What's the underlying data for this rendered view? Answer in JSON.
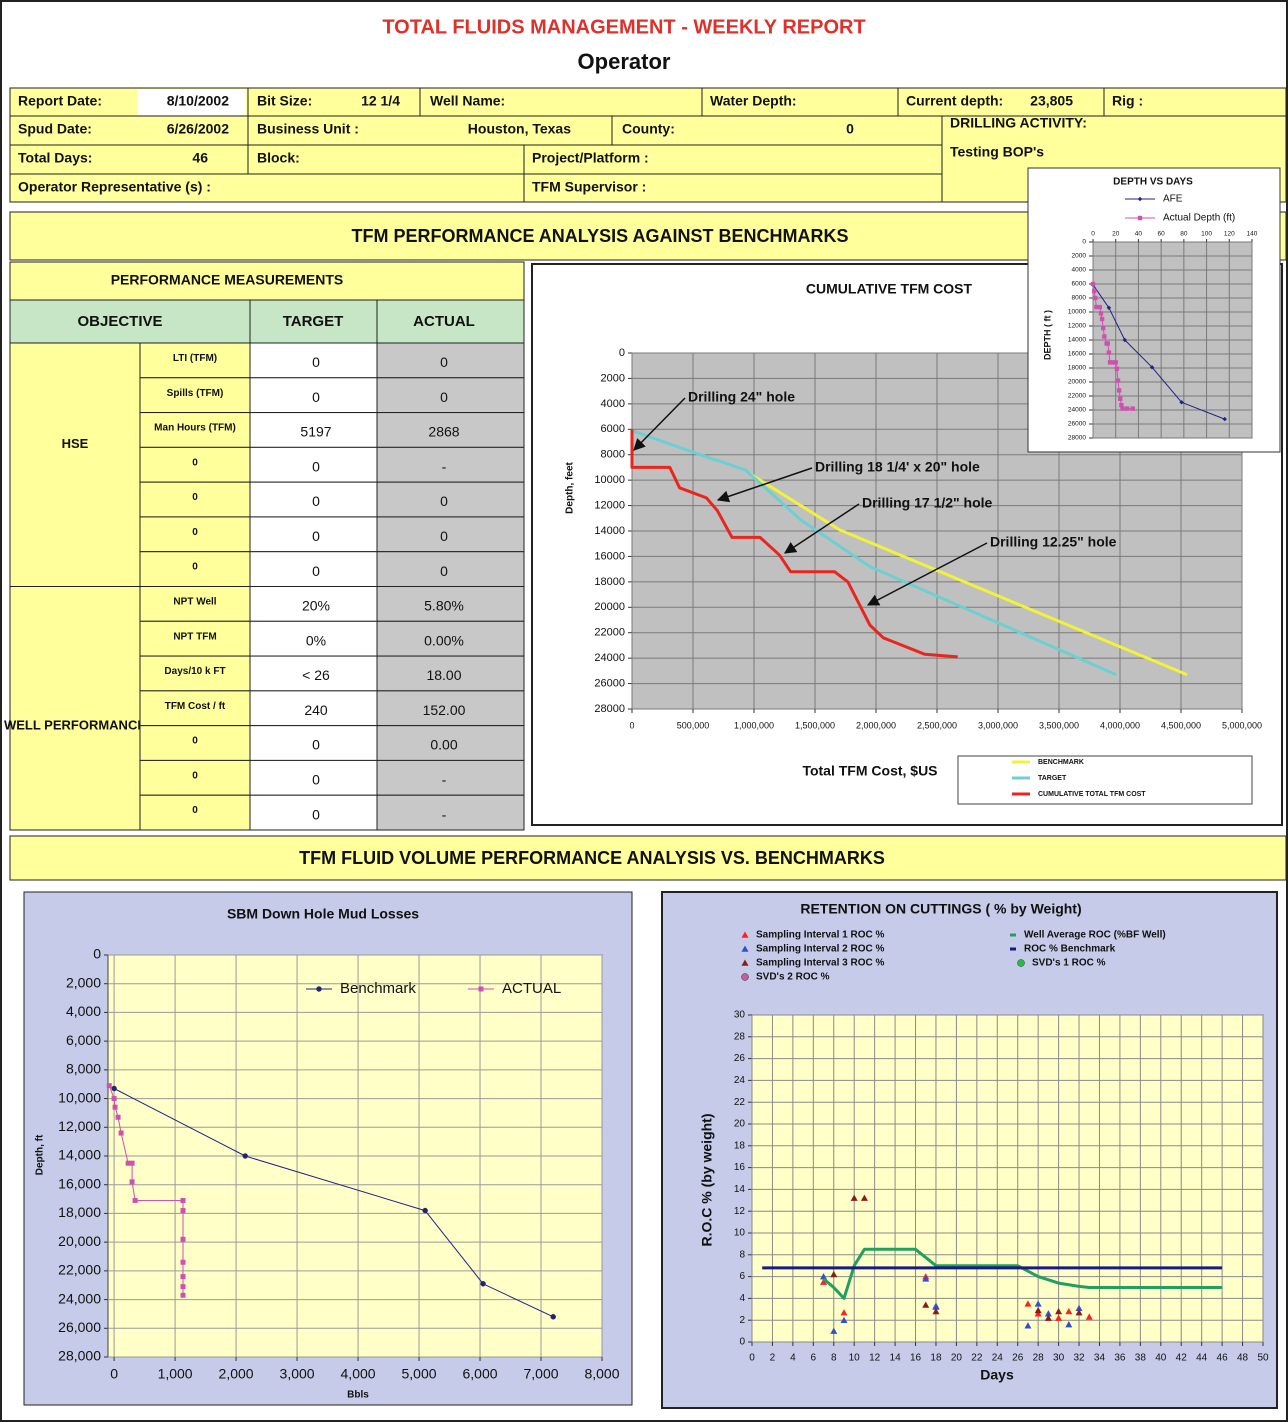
{
  "header": {
    "title": "TOTAL FLUIDS MANAGEMENT - WEEKLY REPORT",
    "subtitle": "Operator"
  },
  "info": [
    {
      "label": "Report Date:",
      "value": "8/10/2002"
    },
    {
      "label": "Bit Size:",
      "value": "12 1/4"
    },
    {
      "label": "Well Name:"
    },
    {
      "label": "Water Depth:"
    },
    {
      "label": "Current depth:",
      "value": "23,805"
    },
    {
      "label": "Rig :"
    },
    {
      "label": "Spud Date:",
      "value": "6/26/2002"
    },
    {
      "label": "Business Unit :",
      "value": "Houston, Texas"
    },
    {
      "label": "County:",
      "value": "0"
    },
    {
      "label": "DRILLING ACTIVITY:",
      "value": "Testing BOP's"
    },
    {
      "label": "Total Days:",
      "value": "46"
    },
    {
      "label": "Block:"
    },
    {
      "label": "Project/Platform :"
    },
    {
      "label": "Operator Representative (s) :"
    },
    {
      "label": "TFM Supervisor :"
    }
  ],
  "sections": [
    "TFM PERFORMANCE ANALYSIS AGAINST BENCHMARKS",
    "TFM FLUID VOLUME PERFORMANCE ANALYSIS VS. BENCHMARKS"
  ],
  "table": {
    "title": "PERFORMANCE MEASUREMENTS",
    "columns": [
      "OBJECTIVE",
      "TARGET",
      "ACTUAL"
    ],
    "groups": [
      {
        "name": "HSE",
        "rows": [
          [
            "LTI (TFM)",
            "0",
            "0"
          ],
          [
            "Spills (TFM)",
            "0",
            "0"
          ],
          [
            "Man Hours (TFM)",
            "5197",
            "2868"
          ],
          [
            "0",
            "0",
            "-"
          ],
          [
            "0",
            "0",
            "0"
          ],
          [
            "0",
            "0",
            "0"
          ],
          [
            "0",
            "0",
            "0"
          ]
        ]
      },
      {
        "name": "WELL PERFORMANCE",
        "rows": [
          [
            "NPT Well",
            "20%",
            "5.80%"
          ],
          [
            "NPT TFM",
            "0%",
            "0.00%"
          ],
          [
            "Days/10 k FT",
            "< 26",
            "18.00"
          ],
          [
            "TFM Cost / ft",
            "240",
            "152.00"
          ],
          [
            "0",
            "0",
            "0.00"
          ],
          [
            "0",
            "0",
            "-"
          ],
          [
            "0",
            "0",
            "-"
          ]
        ]
      }
    ]
  },
  "chart_data": [
    {
      "type": "line",
      "title": "CUMULATIVE TFM COST",
      "x_label": "Total TFM Cost, $US",
      "y_label": "Depth, feet",
      "xlim": [
        0,
        5000000
      ],
      "xticks": [
        0,
        {
          "value": 500000,
          "label": "500,000"
        },
        {
          "value": 1000000,
          "label": "1,000,000"
        },
        {
          "value": 1500000,
          "label": "1,500,000"
        },
        {
          "value": 2000000,
          "label": "2,000,000"
        },
        {
          "value": 2500000,
          "label": "2,500,000"
        },
        {
          "value": 3000000,
          "label": "3,000,000"
        },
        {
          "value": 3500000,
          "label": "3,500,000"
        },
        {
          "value": 4000000,
          "label": "4,000,000"
        },
        {
          "value": 4500000,
          "label": "4,500,000"
        },
        {
          "value": 5000000,
          "label": "5,000,000"
        }
      ],
      "ylim": [
        0,
        28000
      ],
      "yticks": [
        0,
        2000,
        4000,
        6000,
        8000,
        10000,
        12000,
        14000,
        16000,
        18000,
        20000,
        22000,
        24000,
        26000,
        28000
      ],
      "invert_y": true,
      "grid": true,
      "plot_color": "#c0c0c0",
      "annotations": [
        "Drilling 24\" hole",
        "Drilling 18 1/4' x 20\" hole",
        "Drilling 17 1/2\" hole",
        "Drilling 12.25\" hole"
      ],
      "series": [
        {
          "name": "BENCHMARK",
          "color": "#f2f23a",
          "x": [
            950000,
            1700000,
            4550000
          ],
          "values": [
            9400,
            13900,
            25300
          ]
        },
        {
          "name": "TARGET",
          "color": "#6cd0d0",
          "x": [
            0,
            500000,
            930000,
            1380000,
            1950000,
            3970000
          ],
          "values": [
            6100,
            7800,
            9200,
            13100,
            16800,
            25300
          ]
        },
        {
          "name": "CUMULATIVE TOTAL TFM COST",
          "color": "#e8261e",
          "x": [
            0,
            0,
            310000,
            390000,
            610000,
            700000,
            820000,
            1050000,
            1210000,
            1300000,
            1660000,
            1770000,
            1950000,
            2060000,
            2400000,
            2670000
          ],
          "values": [
            6000,
            9000,
            9000,
            10600,
            11400,
            12400,
            14500,
            14500,
            15900,
            17200,
            17200,
            18000,
            21400,
            22400,
            23700,
            23900
          ]
        }
      ]
    },
    {
      "type": "line",
      "title": "DEPTH VS DAYS",
      "y_label": "DEPTH ( ft )",
      "xlim": [
        0,
        140
      ],
      "xticks": [
        0,
        20,
        40,
        60,
        80,
        100,
        120,
        140
      ],
      "ylim": [
        0,
        28000
      ],
      "yticks": [
        0,
        2000,
        4000,
        6000,
        8000,
        10000,
        12000,
        14000,
        16000,
        18000,
        20000,
        22000,
        24000,
        26000,
        28000
      ],
      "invert_y": true,
      "grid": true,
      "plot_color": "#c0c0c0",
      "series": [
        {
          "name": "AFE",
          "color": "#20208a",
          "marker": "diamond",
          "x": [
            0,
            14,
            28,
            52,
            78,
            116
          ],
          "values": [
            6100,
            9400,
            14000,
            17900,
            22900,
            25300
          ]
        },
        {
          "name": "Actual Depth (ft)",
          "color": "#d050b0",
          "marker": "square",
          "x": [
            0,
            1,
            2,
            3,
            6,
            7,
            8,
            9,
            10,
            12,
            13,
            14,
            15,
            18,
            20,
            21,
            22,
            23,
            24,
            25,
            26,
            30,
            35
          ],
          "values": [
            6000,
            7000,
            8000,
            9300,
            9300,
            10200,
            11000,
            12300,
            13500,
            14500,
            14500,
            15800,
            17200,
            17200,
            17200,
            18100,
            19800,
            21200,
            22400,
            23300,
            23800,
            23800,
            23800
          ]
        }
      ]
    },
    {
      "type": "line",
      "title": "SBM Down Hole Mud Losses",
      "x_label": "Bbls",
      "y_label": "Depth, ft",
      "xlim": [
        -100,
        8000
      ],
      "xticks": [
        0,
        {
          "value": 1000,
          "label": "1,000"
        },
        {
          "value": 2000,
          "label": "2,000"
        },
        {
          "value": 3000,
          "label": "3,000"
        },
        {
          "value": 4000,
          "label": "4,000"
        },
        {
          "value": 5000,
          "label": "5,000"
        },
        {
          "value": 6000,
          "label": "6,000"
        },
        {
          "value": 7000,
          "label": "7,000"
        },
        {
          "value": 8000,
          "label": "8,000"
        }
      ],
      "ylim": [
        0,
        28000
      ],
      "yticks": [
        0,
        {
          "value": 2000,
          "label": "2,000"
        },
        {
          "value": 4000,
          "label": "4,000"
        },
        {
          "value": 6000,
          "label": "6,000"
        },
        {
          "value": 8000,
          "label": "8,000"
        },
        {
          "value": 10000,
          "label": "10,000"
        },
        {
          "value": 12000,
          "label": "12,000"
        },
        {
          "value": 14000,
          "label": "14,000"
        },
        {
          "value": 16000,
          "label": "16,000"
        },
        {
          "value": 18000,
          "label": "18,000"
        },
        {
          "value": 20000,
          "label": "20,000"
        },
        {
          "value": 22000,
          "label": "22,000"
        },
        {
          "value": 24000,
          "label": "24,000"
        },
        {
          "value": 26000,
          "label": "26,000"
        },
        {
          "value": 28000,
          "label": "28,000"
        }
      ],
      "invert_y": true,
      "grid": true,
      "plot_color": "#ffffc8",
      "series": [
        {
          "name": "Benchmark",
          "color": "#20208a",
          "marker": "circle",
          "x": [
            0,
            2150,
            5100,
            6050,
            7200
          ],
          "values": [
            9300,
            14000,
            17800,
            22900,
            25200
          ]
        },
        {
          "name": "ACTUAL",
          "color": "#d050b0",
          "marker": "square",
          "x": [
            -80,
            0,
            16,
            65,
            115,
            230,
            295,
            295,
            345,
            1130,
            1130,
            1130,
            1130,
            1130,
            1130,
            1130
          ],
          "values": [
            9100,
            10000,
            10600,
            11300,
            12400,
            14500,
            14500,
            15800,
            17100,
            17100,
            17800,
            19800,
            21400,
            22400,
            23100,
            23700
          ]
        }
      ]
    },
    {
      "type": "scatter",
      "title": "RETENTION ON CUTTINGS ( % by Weight)",
      "x_label": "Days",
      "y_label": "R.O.C % (by weight)",
      "xlim": [
        0,
        50
      ],
      "xticks": [
        0,
        2,
        4,
        6,
        8,
        10,
        12,
        14,
        16,
        18,
        20,
        22,
        24,
        26,
        28,
        30,
        32,
        34,
        36,
        38,
        40,
        42,
        44,
        46,
        48,
        50
      ],
      "ylim": [
        0,
        30
      ],
      "yticks": [
        0,
        2,
        4,
        6,
        8,
        10,
        12,
        14,
        16,
        18,
        20,
        22,
        24,
        26,
        28,
        30
      ],
      "grid": true,
      "plot_color": "#ffffc8",
      "series": [
        {
          "name": "Sampling Interval 1 ROC  %",
          "type": "scatter",
          "marker": "triangle",
          "color": "#ff2020",
          "x": [
            7,
            9,
            17,
            18,
            27,
            28,
            30,
            31,
            33
          ],
          "values": [
            5.5,
            2.7,
            6.0,
            3.2,
            3.5,
            2.6,
            2.2,
            2.8,
            2.3
          ]
        },
        {
          "name": "Sampling Interval 2 ROC  %",
          "type": "scatter",
          "marker": "triangle",
          "color": "#3050d0",
          "x": [
            7,
            8,
            9,
            17,
            18,
            27,
            28,
            29,
            31,
            32
          ],
          "values": [
            6.0,
            1.0,
            2.0,
            5.8,
            3.3,
            1.5,
            3.5,
            2.6,
            1.6,
            3.1
          ]
        },
        {
          "name": "Sampling Interval 3 ROC  %",
          "type": "scatter",
          "marker": "triangle",
          "color": "#8b1a1a",
          "x": [
            8,
            10,
            11,
            17,
            18,
            28,
            29,
            30,
            32
          ],
          "values": [
            6.2,
            13.2,
            13.2,
            3.4,
            2.8,
            2.9,
            2.2,
            2.8,
            2.7
          ]
        },
        {
          "name": "SVD's 2 ROC  %",
          "type": "scatter",
          "marker": "circle",
          "color": "#c060a0",
          "x": [],
          "values": []
        },
        {
          "name": "Well Average ROC     (%BF Well)",
          "type": "line",
          "color": "#20a060",
          "x": [
            7,
            8,
            9,
            10,
            11,
            16,
            18,
            26,
            28,
            30,
            32,
            33,
            46
          ],
          "values": [
            5.8,
            5,
            4,
            7,
            8.5,
            8.5,
            7,
            7,
            6,
            5.4,
            5.1,
            5,
            5
          ]
        },
        {
          "name": "ROC % Benchmark",
          "type": "line",
          "color": "#1a1a80",
          "x": [
            1,
            46
          ],
          "values": [
            6.8,
            6.8
          ]
        },
        {
          "name": "SVD's 1 ROC  %",
          "type": "scatter",
          "marker": "circle",
          "color": "#20c040",
          "x": [],
          "values": []
        }
      ]
    }
  ]
}
